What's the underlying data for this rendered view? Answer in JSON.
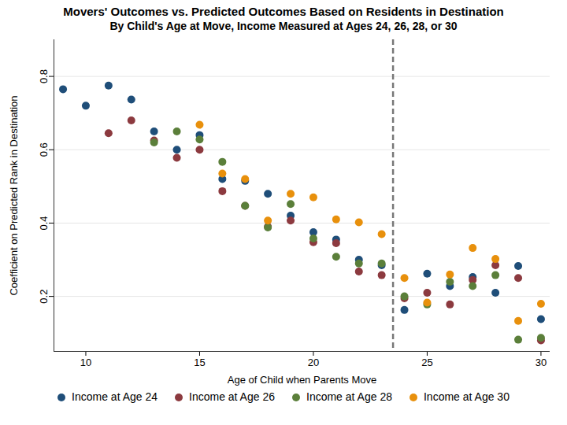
{
  "chart_data": {
    "type": "scatter",
    "title": "Movers' Outcomes vs. Predicted Outcomes Based on Residents in Destination",
    "subtitle": "By Child's Age at Move, Income Measured at Ages 24, 26, 28, or 30",
    "x_label": "Age of Child when Parents Move",
    "y_label": "Coefficient on Predicted Rank in Destination",
    "xlim": [
      8.6,
      30.4
    ],
    "ylim": [
      0.05,
      0.9
    ],
    "xticks": [
      10,
      15,
      20,
      25,
      30
    ],
    "yticks": [
      0.2,
      0.4,
      0.6,
      0.8
    ],
    "grid": true,
    "legend": "bottom",
    "marker": "circle",
    "vline": 23.5,
    "series": [
      {
        "name": "Income at Age 24",
        "color": "#1f4e79",
        "x": [
          9,
          10,
          11,
          12,
          13,
          14,
          15,
          16,
          17,
          18,
          19,
          20,
          21,
          22,
          23,
          24,
          25,
          26,
          27,
          28,
          29,
          30
        ],
        "values": [
          0.765,
          0.72,
          0.775,
          0.737,
          0.65,
          0.6,
          0.64,
          0.52,
          0.515,
          0.48,
          0.42,
          0.375,
          0.355,
          0.3,
          0.285,
          0.163,
          0.262,
          0.228,
          0.253,
          0.21,
          0.283,
          0.138
        ]
      },
      {
        "name": "Income at Age 26",
        "color": "#8c3a3f",
        "x": [
          11,
          12,
          13,
          14,
          15,
          16,
          17,
          18,
          19,
          20,
          21,
          22,
          23,
          24,
          25,
          26,
          27,
          28,
          29,
          30
        ],
        "values": [
          0.645,
          0.68,
          0.625,
          0.578,
          0.6,
          0.487,
          0.447,
          0.39,
          0.407,
          0.348,
          0.345,
          0.268,
          0.258,
          0.195,
          0.21,
          0.178,
          0.245,
          0.285,
          0.25,
          0.08
        ]
      },
      {
        "name": "Income at Age 28",
        "color": "#5b7f3a",
        "x": [
          13,
          14,
          15,
          16,
          17,
          18,
          19,
          20,
          21,
          22,
          23,
          24,
          25,
          26,
          27,
          28,
          29,
          30
        ],
        "values": [
          0.62,
          0.65,
          0.628,
          0.567,
          0.447,
          0.388,
          0.452,
          0.358,
          0.308,
          0.29,
          0.29,
          0.2,
          0.178,
          0.24,
          0.228,
          0.258,
          0.082,
          0.087
        ]
      },
      {
        "name": "Income at Age 30",
        "color": "#e8900c",
        "x": [
          15,
          16,
          17,
          18,
          19,
          20,
          21,
          22,
          23,
          24,
          25,
          26,
          27,
          28,
          29,
          30
        ],
        "values": [
          0.668,
          0.535,
          0.52,
          0.407,
          0.48,
          0.47,
          0.41,
          0.402,
          0.37,
          0.25,
          0.183,
          0.26,
          0.332,
          0.302,
          0.133,
          0.18
        ]
      }
    ]
  }
}
